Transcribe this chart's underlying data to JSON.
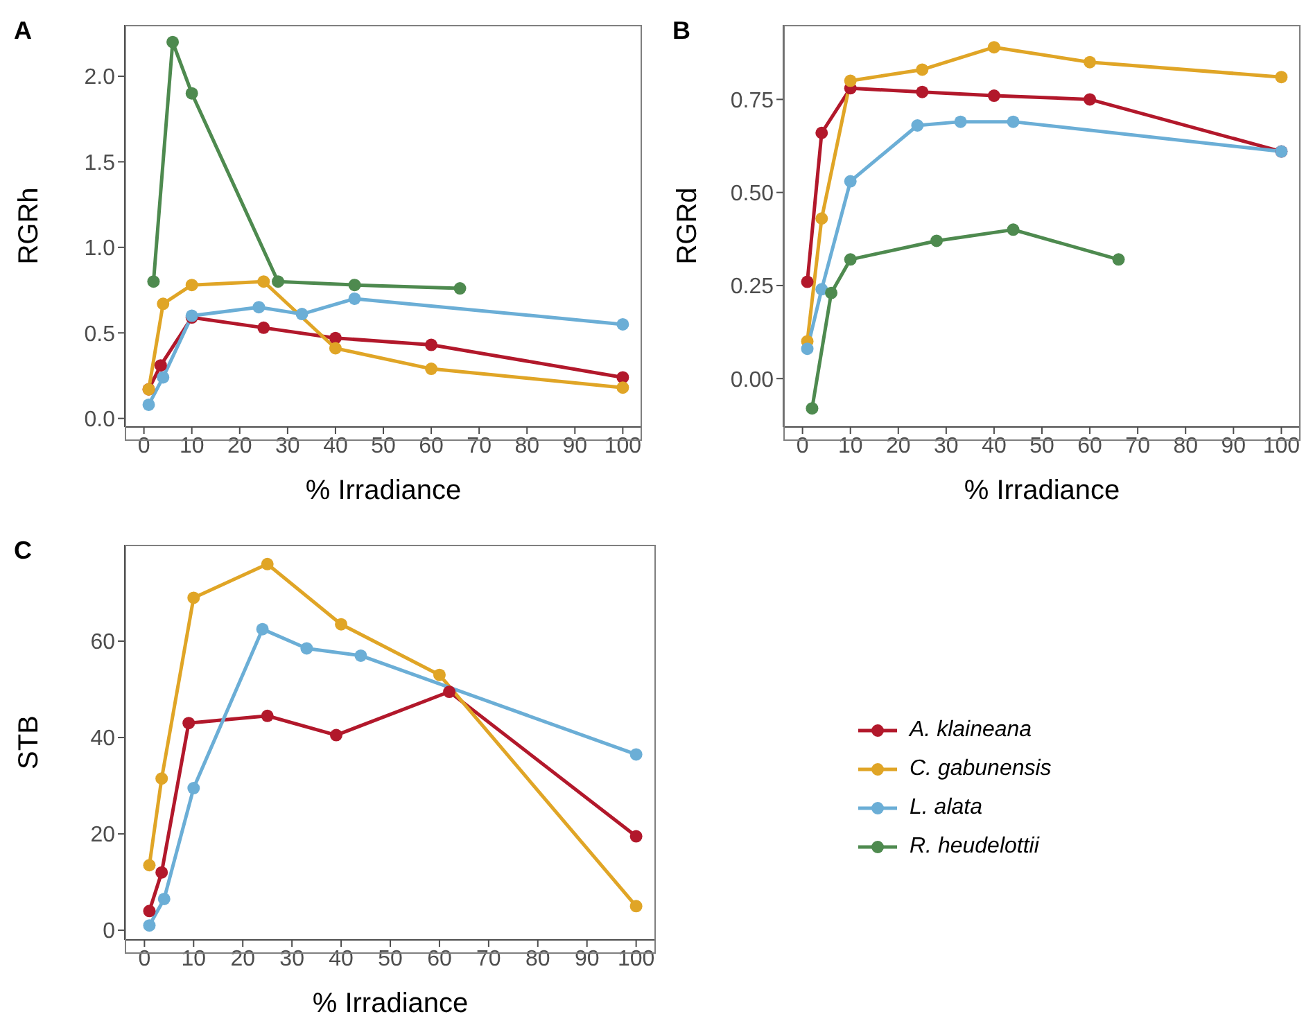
{
  "chart_data": [
    {
      "type": "line",
      "title": "A",
      "xlabel": "% Irradiance",
      "ylabel": "RGRh",
      "xlim": [
        -4,
        104
      ],
      "xticks": [
        0,
        10,
        20,
        30,
        40,
        50,
        60,
        70,
        80,
        90,
        100
      ],
      "ylim": [
        -0.05,
        2.3
      ],
      "yticks": [
        {
          "value": 0,
          "label": "0.0"
        },
        {
          "value": 0.5,
          "label": "0.5"
        },
        {
          "value": 1,
          "label": "1.0"
        },
        {
          "value": 1.5,
          "label": "1.5"
        },
        {
          "value": 2,
          "label": "2.0"
        }
      ],
      "grid": false,
      "legend": "bottom right",
      "marker": "circle",
      "line_style": "solid",
      "series": [
        {
          "name": "A. klaineana",
          "color": "#b2182b",
          "x": [
            1,
            3.5,
            10,
            25,
            40,
            60,
            100
          ],
          "values": [
            0.17,
            0.31,
            0.59,
            0.53,
            0.47,
            0.43,
            0.24
          ]
        },
        {
          "name": "C. gabunensis",
          "color": "#e0a526",
          "x": [
            1,
            4,
            10,
            25,
            40,
            60,
            100
          ],
          "values": [
            0.17,
            0.67,
            0.78,
            0.8,
            0.41,
            0.29,
            0.18
          ]
        },
        {
          "name": "L. alata",
          "color": "#6baed6",
          "x": [
            1,
            4,
            10,
            24,
            33,
            44,
            100
          ],
          "values": [
            0.08,
            0.24,
            0.6,
            0.65,
            0.61,
            0.7,
            0.55
          ]
        },
        {
          "name": "R. heudelottii",
          "color": "#4e8a4f",
          "x": [
            2,
            6,
            10,
            28,
            44,
            66
          ],
          "values": [
            0.8,
            2.2,
            1.9,
            0.8,
            0.78,
            0.76
          ]
        }
      ]
    },
    {
      "type": "line",
      "title": "B",
      "xlabel": "% Irradiance",
      "ylabel": "RGRd",
      "xlim": [
        -4,
        104
      ],
      "xticks": [
        0,
        10,
        20,
        30,
        40,
        50,
        60,
        70,
        80,
        90,
        100
      ],
      "ylim": [
        -0.13,
        0.95
      ],
      "yticks": [
        {
          "value": 0,
          "label": "0.00"
        },
        {
          "value": 0.25,
          "label": "0.25"
        },
        {
          "value": 0.5,
          "label": "0.50"
        },
        {
          "value": 0.75,
          "label": "0.75"
        }
      ],
      "grid": false,
      "legend": false,
      "marker": "circle",
      "line_style": "solid",
      "series": [
        {
          "name": "A. klaineana",
          "color": "#b2182b",
          "x": [
            1,
            4,
            10,
            25,
            40,
            60,
            100
          ],
          "values": [
            0.26,
            0.66,
            0.78,
            0.77,
            0.76,
            0.75,
            0.61
          ]
        },
        {
          "name": "C. gabunensis",
          "color": "#e0a526",
          "x": [
            1,
            4,
            10,
            25,
            40,
            60,
            100
          ],
          "values": [
            0.1,
            0.43,
            0.8,
            0.83,
            0.89,
            0.85,
            0.81
          ]
        },
        {
          "name": "L. alata",
          "color": "#6baed6",
          "x": [
            1,
            4,
            10,
            24,
            33,
            44,
            100
          ],
          "values": [
            0.08,
            0.24,
            0.53,
            0.68,
            0.69,
            0.69,
            0.61
          ]
        },
        {
          "name": "R. heudelottii",
          "color": "#4e8a4f",
          "x": [
            2,
            6,
            10,
            28,
            44,
            66
          ],
          "values": [
            -0.08,
            0.23,
            0.32,
            0.37,
            0.4,
            0.32
          ]
        }
      ]
    },
    {
      "type": "line",
      "title": "C",
      "xlabel": "% Irradiance",
      "ylabel": "STB",
      "xlim": [
        -4,
        104
      ],
      "xticks": [
        0,
        10,
        20,
        30,
        40,
        50,
        60,
        70,
        80,
        90,
        100
      ],
      "ylim": [
        -2,
        80
      ],
      "yticks": [
        0,
        20,
        40,
        60
      ],
      "grid": false,
      "legend": false,
      "marker": "circle",
      "line_style": "solid",
      "series": [
        {
          "name": "A. klaineana",
          "color": "#b2182b",
          "x": [
            1,
            3.5,
            9,
            25,
            39,
            62,
            100
          ],
          "values": [
            4,
            12,
            43,
            44.5,
            40.5,
            49.5,
            19.5
          ]
        },
        {
          "name": "C. gabunensis",
          "color": "#e0a526",
          "x": [
            1,
            3.5,
            10,
            25,
            40,
            60,
            100
          ],
          "values": [
            13.5,
            31.5,
            69,
            76,
            63.5,
            53,
            5
          ]
        },
        {
          "name": "L. alata",
          "color": "#6baed6",
          "x": [
            1,
            4,
            10,
            24,
            33,
            44,
            100
          ],
          "values": [
            1,
            6.5,
            29.5,
            62.5,
            58.5,
            57,
            36.5
          ]
        }
      ]
    }
  ]
}
